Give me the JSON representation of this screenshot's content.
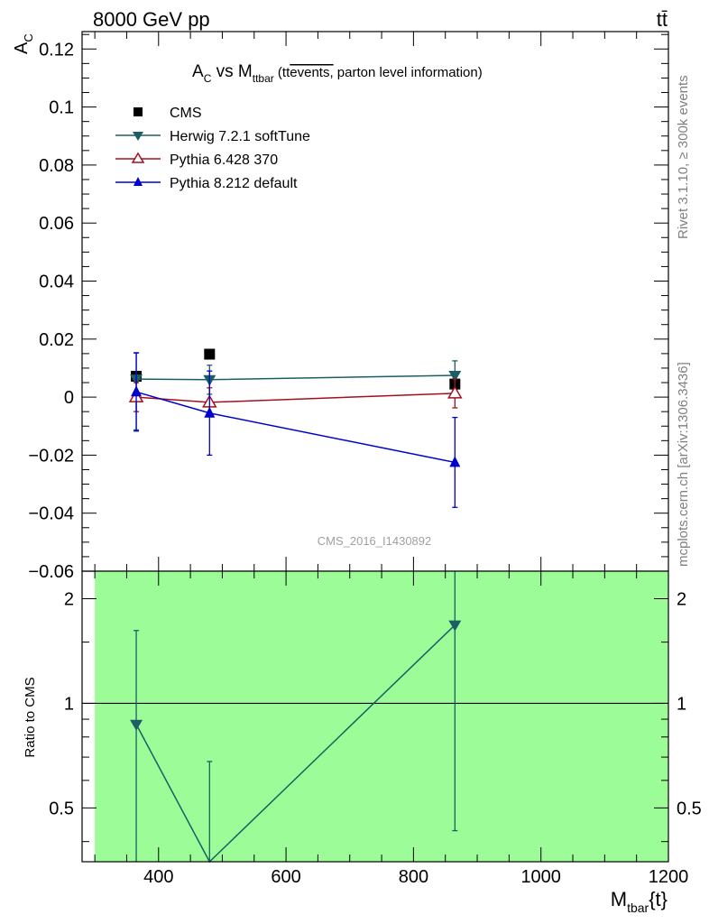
{
  "header": {
    "energy_label": "8000 GeV pp",
    "process_label": "tt̄",
    "rivet_label": "Rivet 3.1.10, ≥ 300k events",
    "mcplots_label": "mcplots.cern.ch [arXiv:1306.3436]"
  },
  "main_plot": {
    "title_prefix": "A",
    "title_prefix_sub": "C",
    "title_vs": " vs M",
    "title_vs_sub": "ttbar",
    "title_paren_open": " (tt",
    "title_overline": "events,",
    "title_rest": " parton level information)",
    "ylabel": "A",
    "ylabel_sub": "C",
    "watermark": "CMS_2016_I1430892",
    "yticks": [
      "0.12",
      "0.1",
      "0.08",
      "0.06",
      "0.04",
      "0.02",
      "0",
      "−0.02",
      "−0.04",
      "−0.06"
    ]
  },
  "ratio_plot": {
    "ylabel": "Ratio to CMS",
    "left_ticks": [
      "2",
      "1",
      "0.5"
    ],
    "right_ticks": [
      "2",
      "1",
      "0.5"
    ]
  },
  "xaxis": {
    "label": "M",
    "label_sub": "tbar",
    "label_suffix": "{t}",
    "ticks": [
      "400",
      "600",
      "800",
      "1000",
      "1200"
    ]
  },
  "legend": [
    {
      "label": "CMS",
      "color": "#000000",
      "marker": "square"
    },
    {
      "label": "Herwig 7.2.1 softTune",
      "color": "#1b5e63",
      "marker": "triangle-down"
    },
    {
      "label": "Pythia 6.428 370",
      "color": "#a01020",
      "marker": "triangle-up-open"
    },
    {
      "label": "Pythia 8.212 default",
      "color": "#0000cc",
      "marker": "triangle-up"
    }
  ],
  "chart_data": {
    "type": "scatter",
    "x_range": [
      280,
      1200
    ],
    "ylim": [
      -0.06,
      0.126
    ],
    "ratio_ylim": [
      0.35,
      2.4
    ],
    "ratio_scale": "log",
    "band_x_range": [
      300,
      1200
    ],
    "series": [
      {
        "name": "CMS",
        "x": [
          365,
          480,
          865
        ],
        "y": [
          0.0072,
          0.0148,
          0.0045
        ]
      },
      {
        "name": "Herwig 7.2.1 softTune",
        "x": [
          365,
          480,
          865
        ],
        "y": [
          0.0062,
          0.006,
          0.0075
        ],
        "yerr_low": [
          0.0175,
          0.005,
          0.005
        ],
        "yerr_high": [
          0.009,
          0.005,
          0.005
        ]
      },
      {
        "name": "Pythia 6.428 370",
        "x": [
          365,
          480,
          865
        ],
        "y": [
          0.0,
          -0.0018,
          0.0013
        ],
        "yerr_low": [
          0.005,
          0.005,
          0.005
        ],
        "yerr_high": [
          0.005,
          0.005,
          0.005
        ]
      },
      {
        "name": "Pythia 8.212 default",
        "x": [
          365,
          480,
          865
        ],
        "y": [
          0.0018,
          -0.0055,
          -0.0225
        ],
        "yerr_low": [
          0.0135,
          0.0145,
          0.0155
        ],
        "yerr_high": [
          0.0135,
          0.0145,
          0.0155
        ]
      }
    ],
    "ratio_series": [
      {
        "name": "Herwig 7.2.1 softTune",
        "x": [
          365,
          480,
          865
        ],
        "y": [
          0.87,
          0.33,
          1.68
        ],
        "yerr_low": [
          0.52,
          0.0,
          1.25
        ],
        "yerr_high": [
          0.75,
          0.35,
          0.72
        ]
      }
    ]
  }
}
